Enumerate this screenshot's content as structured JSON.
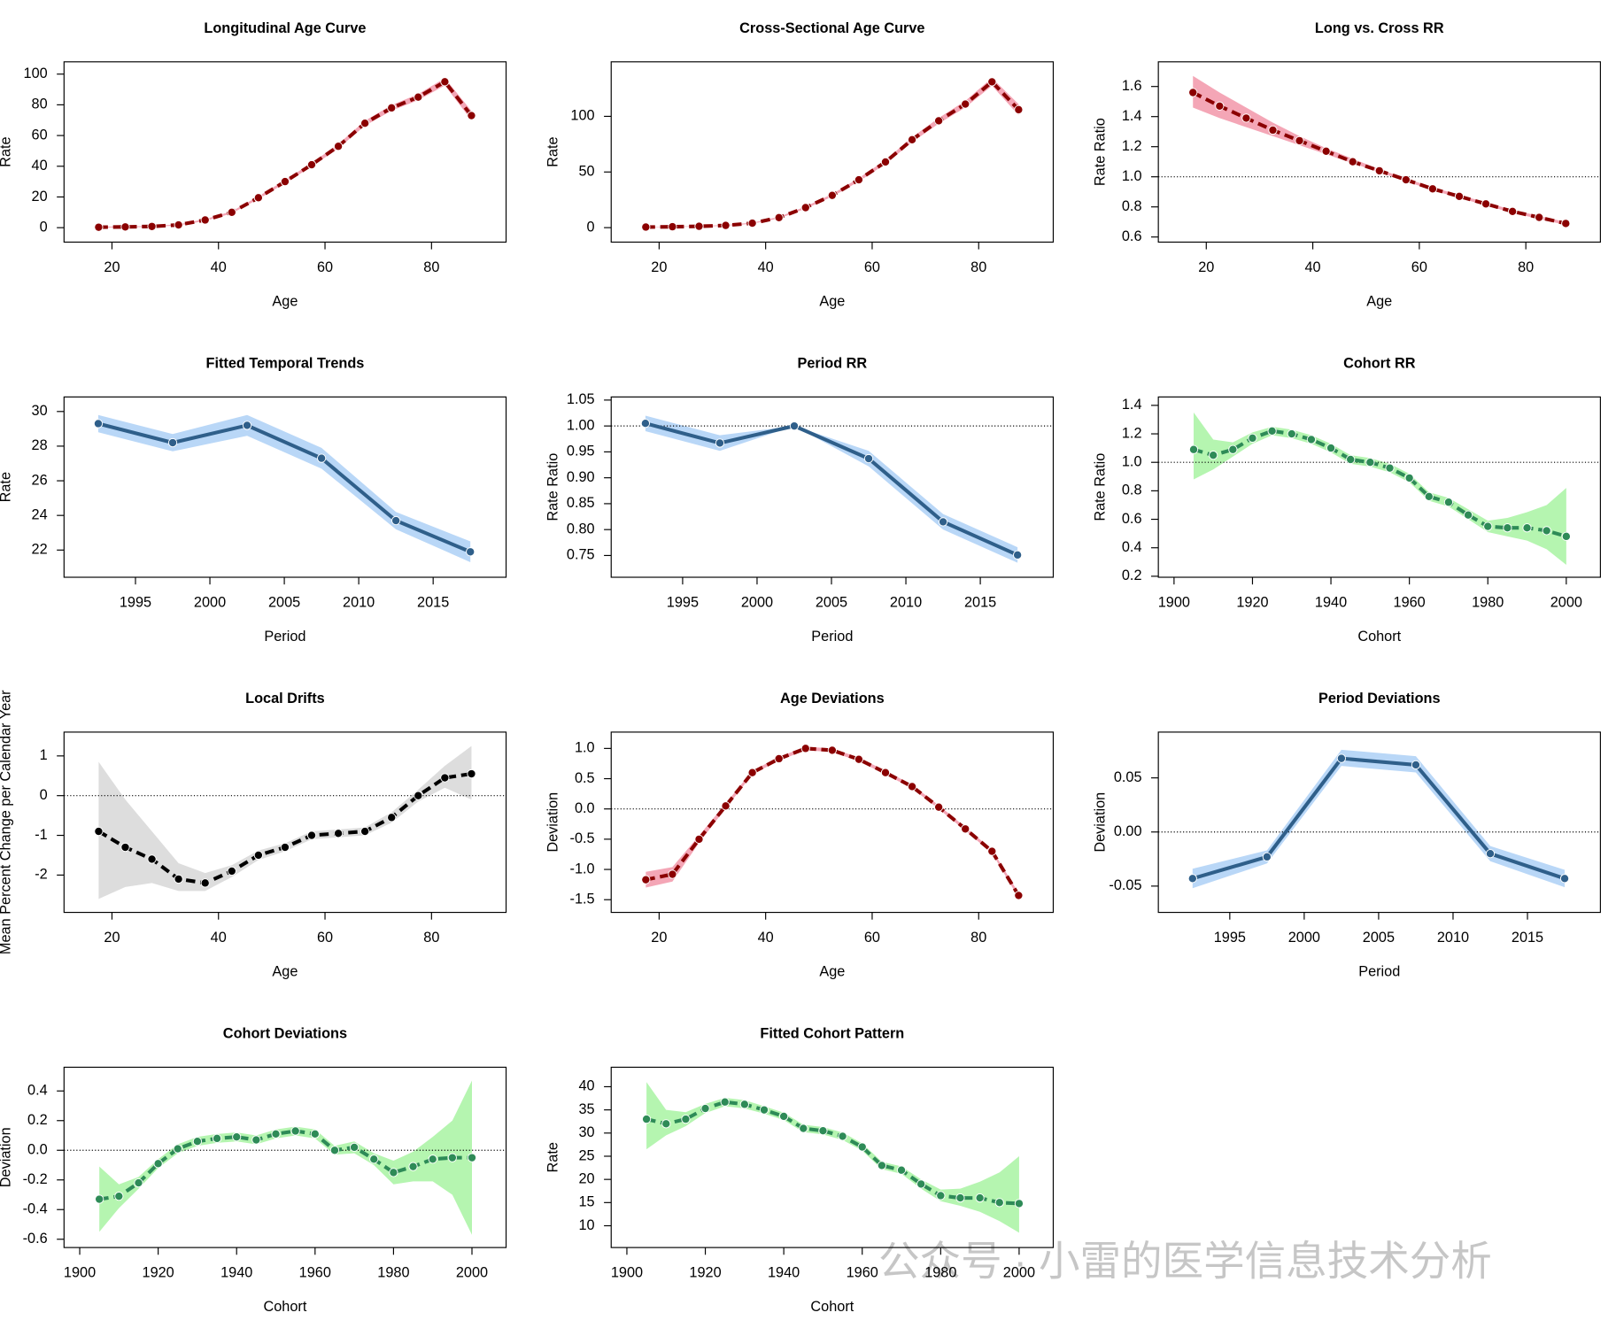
{
  "chart_data": [
    {
      "type": "line",
      "title": "Longitudinal Age Curve",
      "xlabel": "Age",
      "ylabel": "Rate",
      "linetype": "dashed",
      "x": [
        17.5,
        22.5,
        27.5,
        32.5,
        37.5,
        42.5,
        47.5,
        52.5,
        57.5,
        62.5,
        67.5,
        72.5,
        77.5,
        82.5,
        87.5
      ],
      "xlim": [
        11,
        94
      ],
      "xticks": [
        20,
        40,
        60,
        80
      ],
      "ylim": [
        -9.4,
        108
      ],
      "yticks": [
        0,
        20,
        40,
        60,
        80,
        100
      ],
      "series": [
        {
          "color": "#8b0000",
          "band_color": "#f4a6b6",
          "values": [
            0.3,
            0.5,
            0.8,
            1.8,
            5,
            10,
            19.5,
            30,
            41,
            53,
            68,
            78,
            85,
            95,
            73
          ],
          "lower": [
            0,
            0.2,
            0.5,
            1.4,
            4.4,
            9.3,
            18.6,
            29,
            39.8,
            51.6,
            66.4,
            76.2,
            83,
            92.6,
            70
          ],
          "upper": [
            0.6,
            0.8,
            1.1,
            2.2,
            5.6,
            10.7,
            20.4,
            31,
            42.2,
            54.4,
            69.6,
            79.8,
            87,
            97.4,
            76
          ]
        }
      ]
    },
    {
      "type": "line",
      "title": "Cross-Sectional Age Curve",
      "xlabel": "Age",
      "ylabel": "Rate",
      "linetype": "dashed",
      "x": [
        17.5,
        22.5,
        27.5,
        32.5,
        37.5,
        42.5,
        47.5,
        52.5,
        57.5,
        62.5,
        67.5,
        72.5,
        77.5,
        82.5,
        87.5
      ],
      "xlim": [
        11,
        94
      ],
      "xticks": [
        20,
        40,
        60,
        80
      ],
      "ylim": [
        -13,
        149
      ],
      "yticks": [
        0,
        50,
        100
      ],
      "series": [
        {
          "color": "#8b0000",
          "band_color": "#f4a6b6",
          "values": [
            0.5,
            0.8,
            1.2,
            2,
            4,
            9,
            18,
            29,
            43,
            59,
            79,
            96,
            111,
            131,
            106
          ],
          "lower": [
            0.3,
            0.6,
            0.9,
            1.6,
            3.5,
            8.3,
            17,
            27.8,
            41.5,
            57.2,
            76.8,
            93.5,
            108,
            127.5,
            101
          ],
          "upper": [
            0.7,
            1,
            1.5,
            2.4,
            4.5,
            9.7,
            19,
            30.2,
            44.5,
            60.8,
            81.2,
            98.5,
            114,
            134.5,
            111
          ]
        }
      ]
    },
    {
      "type": "line",
      "title": "Long vs. Cross RR",
      "xlabel": "Age",
      "ylabel": "Rate Ratio",
      "linetype": "dashed",
      "hline": 1,
      "x": [
        17.5,
        22.5,
        27.5,
        32.5,
        37.5,
        42.5,
        47.5,
        52.5,
        57.5,
        62.5,
        67.5,
        72.5,
        77.5,
        82.5,
        87.5
      ],
      "xlim": [
        11,
        94
      ],
      "xticks": [
        20,
        40,
        60,
        80
      ],
      "ylim": [
        0.566,
        1.764
      ],
      "yticks": [
        0.6,
        0.8,
        {
          "value": 1,
          "label": "1.0"
        },
        1.2,
        1.4,
        1.6
      ],
      "series": [
        {
          "color": "#8b0000",
          "band_color": "#f4a6b6",
          "values": [
            1.56,
            1.47,
            1.39,
            1.31,
            1.24,
            1.17,
            1.1,
            1.04,
            0.98,
            0.92,
            0.87,
            0.82,
            0.77,
            0.73,
            0.69
          ],
          "lower": [
            1.46,
            1.39,
            1.33,
            1.27,
            1.21,
            1.15,
            1.09,
            1.03,
            0.97,
            0.91,
            0.86,
            0.81,
            0.76,
            0.72,
            0.68
          ],
          "upper": [
            1.67,
            1.56,
            1.46,
            1.36,
            1.27,
            1.19,
            1.12,
            1.05,
            0.99,
            0.93,
            0.88,
            0.83,
            0.78,
            0.74,
            0.7
          ]
        }
      ]
    },
    {
      "type": "line",
      "title": "Fitted Temporal Trends",
      "xlabel": "Period",
      "ylabel": "Rate",
      "linetype": "solid",
      "x": [
        1992.5,
        1997.5,
        2002.5,
        2007.5,
        2012.5,
        2017.5
      ],
      "xlim": [
        1990.2,
        2019.9
      ],
      "xticks": [
        1995,
        2000,
        2005,
        2010,
        2015
      ],
      "ylim": [
        20.43,
        30.84
      ],
      "yticks": [
        22,
        24,
        26,
        28,
        30
      ],
      "series": [
        {
          "color": "#2f5f8a",
          "band_color": "#b9d7f7",
          "values": [
            29.3,
            28.2,
            29.2,
            27.3,
            23.7,
            21.9
          ],
          "lower": [
            28.8,
            27.7,
            28.6,
            26.7,
            23.2,
            21.3
          ],
          "upper": [
            29.8,
            28.7,
            29.8,
            27.9,
            24.2,
            22.5
          ]
        }
      ]
    },
    {
      "type": "line",
      "title": "Period RR",
      "xlabel": "Period",
      "ylabel": "Rate Ratio",
      "linetype": "solid",
      "hline": 1,
      "x": [
        1992.5,
        1997.5,
        2002.5,
        2007.5,
        2012.5,
        2017.5
      ],
      "xlim": [
        1990.2,
        2019.9
      ],
      "xticks": [
        1995,
        2000,
        2005,
        2010,
        2015
      ],
      "ylim": [
        0.708,
        1.056
      ],
      "yticks": [
        0.75,
        {
          "value": 0.8,
          "label": "0.80"
        },
        0.85,
        {
          "value": 0.9,
          "label": "0.90"
        },
        0.95,
        {
          "value": 1,
          "label": "1.00"
        },
        1.05
      ],
      "series": [
        {
          "color": "#2f5f8a",
          "band_color": "#b9d7f7",
          "values": [
            1.005,
            0.967,
            1,
            0.937,
            0.815,
            0.751
          ],
          "lower": [
            0.99,
            0.952,
            1,
            0.922,
            0.8,
            0.736
          ],
          "upper": [
            1.02,
            0.982,
            1,
            0.952,
            0.83,
            0.766
          ]
        }
      ]
    },
    {
      "type": "line",
      "title": "Cohort RR",
      "xlabel": "Cohort",
      "ylabel": "Rate Ratio",
      "linetype": "dashed",
      "hline": 1,
      "x": [
        1905,
        1910,
        1915,
        1920,
        1925,
        1930,
        1935,
        1940,
        1945,
        1950,
        1955,
        1960,
        1965,
        1970,
        1975,
        1980,
        1985,
        1990,
        1995,
        2000
      ],
      "xlim": [
        1896,
        2008.7
      ],
      "xticks": [
        1900,
        1920,
        1940,
        1960,
        1980,
        2000
      ],
      "ylim": [
        0.193,
        1.459
      ],
      "yticks": [
        0.2,
        0.4,
        0.6,
        0.8,
        {
          "value": 1,
          "label": "1.0"
        },
        1.2,
        1.4
      ],
      "series": [
        {
          "color": "#2e8b57",
          "band_color": "#b5f5b0",
          "values": [
            1.09,
            1.05,
            1.09,
            1.17,
            1.22,
            1.2,
            1.16,
            1.1,
            1.02,
            1,
            0.96,
            0.89,
            0.76,
            0.72,
            0.63,
            0.55,
            0.54,
            0.54,
            0.52,
            0.48
          ],
          "lower": [
            0.88,
            0.95,
            1.04,
            1.13,
            1.19,
            1.17,
            1.13,
            1.07,
            0.99,
            0.97,
            0.93,
            0.86,
            0.73,
            0.69,
            0.6,
            0.51,
            0.48,
            0.45,
            0.39,
            0.28
          ],
          "upper": [
            1.35,
            1.16,
            1.14,
            1.21,
            1.25,
            1.23,
            1.19,
            1.13,
            1.05,
            1.03,
            0.99,
            0.92,
            0.79,
            0.75,
            0.67,
            0.59,
            0.61,
            0.65,
            0.7,
            0.82
          ]
        }
      ]
    },
    {
      "type": "line",
      "title": "Local Drifts",
      "xlabel": "Age",
      "ylabel": "Mean Percent Change per Calendar Year",
      "linetype": "dashed",
      "hline": 0,
      "x": [
        17.5,
        22.5,
        27.5,
        32.5,
        37.5,
        42.5,
        47.5,
        52.5,
        57.5,
        62.5,
        67.5,
        72.5,
        77.5,
        82.5,
        87.5
      ],
      "xlim": [
        11,
        94
      ],
      "xticks": [
        20,
        40,
        60,
        80
      ],
      "ylim": [
        -2.94,
        1.6
      ],
      "yticks": [
        -2,
        -1,
        0,
        1
      ],
      "series": [
        {
          "color": "#000000",
          "band_color": "#dddddd",
          "values": [
            -0.9,
            -1.3,
            -1.6,
            -2.1,
            -2.2,
            -1.9,
            -1.5,
            -1.3,
            -1,
            -0.95,
            -0.9,
            -0.55,
            0,
            0.45,
            0.55
          ],
          "lower": [
            -2.6,
            -2.3,
            -2.2,
            -2.4,
            -2.4,
            -2.05,
            -1.62,
            -1.4,
            -1.1,
            -1.05,
            -1,
            -0.68,
            -0.15,
            0.2,
            -0.1
          ],
          "upper": [
            0.85,
            -0.1,
            -0.9,
            -1.7,
            -1.95,
            -1.75,
            -1.38,
            -1.2,
            -0.9,
            -0.85,
            -0.8,
            -0.42,
            0.15,
            0.75,
            1.25
          ]
        }
      ]
    },
    {
      "type": "line",
      "title": "Age Deviations",
      "xlabel": "Age",
      "ylabel": "Deviation",
      "linetype": "dashed",
      "hline": 0,
      "x": [
        17.5,
        22.5,
        27.5,
        32.5,
        37.5,
        42.5,
        47.5,
        52.5,
        57.5,
        62.5,
        67.5,
        72.5,
        77.5,
        82.5,
        87.5
      ],
      "xlim": [
        11,
        94
      ],
      "xticks": [
        20,
        40,
        60,
        80
      ],
      "ylim": [
        -1.71,
        1.27
      ],
      "yticks": [
        -1.5,
        {
          "value": -1,
          "label": "-1.0"
        },
        -0.5,
        {
          "value": 0,
          "label": "0.0"
        },
        0.5,
        {
          "value": 1,
          "label": "1.0"
        }
      ],
      "series": [
        {
          "color": "#8b0000",
          "band_color": "#f4a6b6",
          "values": [
            -1.17,
            -1.08,
            -0.5,
            0.05,
            0.6,
            0.83,
            1,
            0.97,
            0.82,
            0.6,
            0.37,
            0.03,
            -0.33,
            -0.7,
            -1.43
          ],
          "lower": [
            -1.3,
            -1.2,
            -0.56,
            0.01,
            0.57,
            0.8,
            0.97,
            0.94,
            0.79,
            0.57,
            0.34,
            0,
            -0.36,
            -0.73,
            -1.47
          ],
          "upper": [
            -1.04,
            -0.96,
            -0.44,
            0.09,
            0.63,
            0.86,
            1.03,
            1,
            0.85,
            0.63,
            0.4,
            0.06,
            -0.3,
            -0.67,
            -1.39
          ]
        }
      ]
    },
    {
      "type": "line",
      "title": "Period Deviations",
      "xlabel": "Period",
      "ylabel": "Deviation",
      "linetype": "solid",
      "hline": 0,
      "x": [
        1992.5,
        1997.5,
        2002.5,
        2007.5,
        2012.5,
        2017.5
      ],
      "xlim": [
        1990.2,
        2019.9
      ],
      "xticks": [
        1995,
        2000,
        2005,
        2010,
        2015
      ],
      "ylim": [
        -0.0743,
        0.0923
      ],
      "yticks": [
        -0.05,
        {
          "value": 0,
          "label": "0.00"
        },
        0.05
      ],
      "series": [
        {
          "color": "#2f5f8a",
          "band_color": "#b9d7f7",
          "values": [
            -0.043,
            -0.023,
            0.068,
            0.062,
            -0.02,
            -0.043
          ],
          "lower": [
            -0.052,
            -0.029,
            0.061,
            0.055,
            -0.027,
            -0.051
          ],
          "upper": [
            -0.034,
            -0.017,
            0.076,
            0.07,
            -0.013,
            -0.035
          ]
        }
      ]
    },
    {
      "type": "line",
      "title": "Cohort Deviations",
      "xlabel": "Cohort",
      "ylabel": "Deviation",
      "linetype": "dashed",
      "hline": 0,
      "x": [
        1905,
        1910,
        1915,
        1920,
        1925,
        1930,
        1935,
        1940,
        1945,
        1950,
        1955,
        1960,
        1965,
        1970,
        1975,
        1980,
        1985,
        1990,
        1995,
        2000
      ],
      "xlim": [
        1896,
        2008.7
      ],
      "xticks": [
        1900,
        1920,
        1940,
        1960,
        1980,
        2000
      ],
      "ylim": [
        -0.656,
        0.56
      ],
      "yticks": [
        -0.6,
        -0.4,
        -0.2,
        {
          "value": 0,
          "label": "0.0"
        },
        0.2,
        0.4
      ],
      "series": [
        {
          "color": "#2e8b57",
          "band_color": "#b5f5b0",
          "values": [
            -0.33,
            -0.31,
            -0.22,
            -0.09,
            0.01,
            0.06,
            0.08,
            0.09,
            0.07,
            0.11,
            0.13,
            0.11,
            0,
            0.02,
            -0.06,
            -0.15,
            -0.11,
            -0.06,
            -0.05,
            -0.05
          ],
          "lower": [
            -0.55,
            -0.39,
            -0.26,
            -0.12,
            -0.02,
            0.03,
            0.05,
            0.06,
            0.04,
            0.08,
            0.1,
            0.08,
            -0.03,
            -0.02,
            -0.1,
            -0.23,
            -0.21,
            -0.21,
            -0.3,
            -0.57
          ],
          "upper": [
            -0.11,
            -0.23,
            -0.18,
            -0.06,
            0.04,
            0.09,
            0.11,
            0.12,
            0.1,
            0.14,
            0.16,
            0.14,
            0.03,
            0.06,
            -0.02,
            -0.07,
            -0.01,
            0.09,
            0.2,
            0.47
          ]
        }
      ]
    },
    {
      "type": "line",
      "title": "Fitted Cohort Pattern",
      "xlabel": "Cohort",
      "ylabel": "Rate",
      "linetype": "dashed",
      "x": [
        1905,
        1910,
        1915,
        1920,
        1925,
        1930,
        1935,
        1940,
        1945,
        1950,
        1955,
        1960,
        1965,
        1970,
        1975,
        1980,
        1985,
        1990,
        1995,
        2000
      ],
      "xlim": [
        1896,
        2008.7
      ],
      "xticks": [
        1900,
        1920,
        1940,
        1960,
        1980,
        2000
      ],
      "ylim": [
        5.3,
        44.2
      ],
      "yticks": [
        10,
        15,
        20,
        25,
        30,
        35,
        40
      ],
      "series": [
        {
          "color": "#2e8b57",
          "band_color": "#b5f5b0",
          "values": [
            33,
            32,
            33,
            35.3,
            36.7,
            36.2,
            35,
            33.6,
            31,
            30.5,
            29.3,
            27,
            23,
            22,
            19,
            16.5,
            16,
            16,
            15,
            14.8
          ],
          "lower": [
            26.5,
            29.5,
            31.5,
            34.3,
            35.8,
            35.3,
            34.2,
            32.8,
            30.2,
            29.7,
            28.5,
            26.2,
            22.2,
            21.2,
            18,
            15.3,
            14.3,
            13,
            11,
            8.5
          ],
          "upper": [
            41,
            35,
            34.5,
            36.3,
            37.6,
            37.1,
            35.8,
            34.4,
            31.8,
            31.3,
            30.1,
            27.8,
            23.8,
            22.8,
            20,
            17.8,
            18,
            19.5,
            21.5,
            25
          ]
        }
      ]
    }
  ],
  "watermark": "公众号 · 小雷的医学信息技术分析"
}
